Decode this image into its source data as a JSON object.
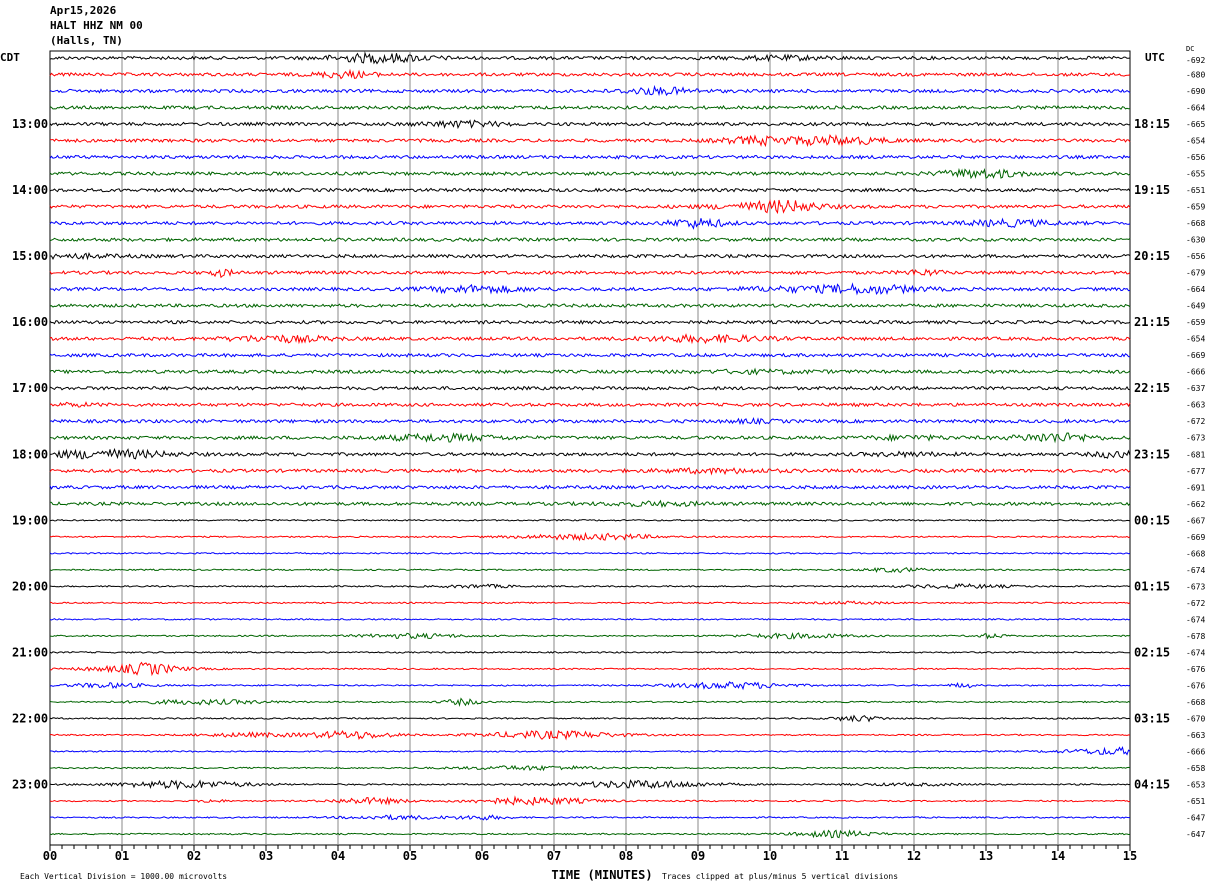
{
  "header": {
    "date": "Apr15,2026",
    "station": "HALT HHZ NM 00",
    "location": "(Halls, TN)"
  },
  "chart_data": {
    "type": "line",
    "subtype": "helicorder",
    "left_timezone": "CDT",
    "right_timezone": "UTC",
    "dc_header": "DC",
    "left_hour_labels": [
      "13:00",
      "14:00",
      "15:00",
      "16:00",
      "17:00",
      "18:00",
      "19:00",
      "20:00",
      "21:00",
      "22:00",
      "23:00"
    ],
    "right_hour_labels": [
      "18:15",
      "19:15",
      "20:15",
      "21:15",
      "22:15",
      "23:15",
      "00:15",
      "01:15",
      "02:15",
      "03:15",
      "04:15"
    ],
    "dc_offsets": [
      -692,
      -680,
      -690,
      -664,
      -665,
      -654,
      -656,
      -655,
      -651,
      -659,
      -668,
      -630,
      -656,
      -679,
      -664,
      -649,
      -659,
      -654,
      -669,
      -666,
      -637,
      -663,
      -672,
      -673,
      -681,
      -677,
      -691,
      -662,
      -667,
      -669,
      -668,
      -674,
      -673,
      -672,
      -674,
      -678,
      -674,
      -676,
      -676,
      -668,
      -670,
      -663,
      -666,
      -658,
      -653,
      -651,
      -647,
      -647
    ],
    "trace_colors": [
      "#000000",
      "#ff0000",
      "#0000ff",
      "#006400"
    ],
    "x_ticks": [
      "00",
      "01",
      "02",
      "03",
      "04",
      "05",
      "06",
      "07",
      "08",
      "09",
      "10",
      "11",
      "12",
      "13",
      "14",
      "15"
    ],
    "xlim": [
      0,
      15
    ],
    "xlabel": "TIME (MINUTES)",
    "grid": true
  },
  "footer": {
    "scale_note": "Each Vertical Division = 1000.00 microvolts",
    "clip_note": "Traces clipped at plus/minus 5 vertical divisions"
  }
}
